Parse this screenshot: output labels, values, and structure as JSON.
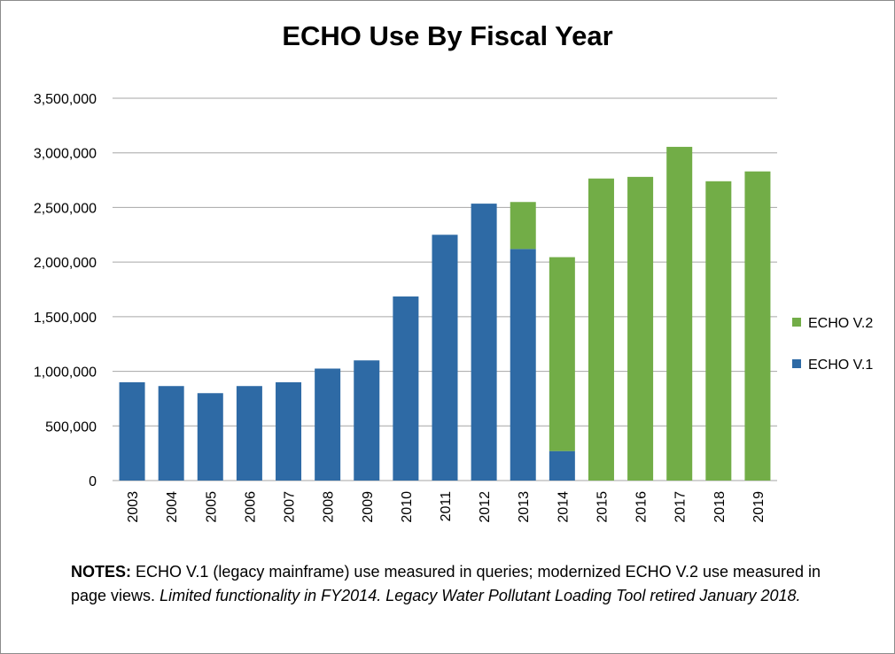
{
  "chart_data": {
    "type": "bar",
    "stacked": true,
    "title": "ECHO Use By Fiscal Year",
    "xlabel": "",
    "ylabel": "",
    "ylim": [
      0,
      3500000
    ],
    "y_ticks": [
      "0",
      "500,000",
      "1,000,000",
      "1,500,000",
      "2,000,000",
      "2,500,000",
      "3,000,000",
      "3,500,000"
    ],
    "y_tick_values": [
      0,
      500000,
      1000000,
      1500000,
      2000000,
      2500000,
      3000000,
      3500000
    ],
    "grid": true,
    "legend_position": "right",
    "categories": [
      "2003",
      "2004",
      "2005",
      "2006",
      "2007",
      "2008",
      "2009",
      "2010",
      "2011",
      "2012",
      "2013",
      "2014",
      "2015",
      "2016",
      "2017",
      "2018",
      "2019"
    ],
    "series": [
      {
        "name": "ECHO V.1",
        "color": "#2e6aa5",
        "values": [
          900000,
          865000,
          800000,
          865000,
          900000,
          1025000,
          1100000,
          1685000,
          2250000,
          2535000,
          2120000,
          270000,
          0,
          0,
          0,
          0,
          0
        ]
      },
      {
        "name": "ECHO V.2",
        "color": "#72ad47",
        "values": [
          0,
          0,
          0,
          0,
          0,
          0,
          0,
          0,
          0,
          0,
          430000,
          1775000,
          2765000,
          2780000,
          3055000,
          2740000,
          2830000
        ]
      }
    ]
  },
  "notes": {
    "label": "NOTES:",
    "text": " ECHO V.1 (legacy mainframe) use measured in queries; modernized ECHO V.2 use measured in page views. ",
    "italic_text": "Limited functionality in FY2014. Legacy Water Pollutant Loading Tool retired January 2018."
  }
}
